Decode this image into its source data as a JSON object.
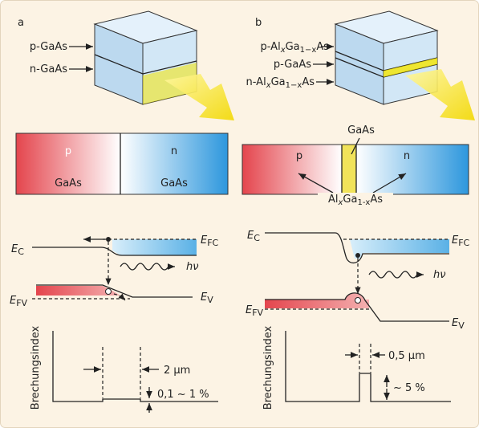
{
  "panels": [
    {
      "label": "a",
      "layers": [
        [
          "p-GaAs"
        ],
        [
          "n-GaAs"
        ]
      ],
      "bar": {
        "left": {
          "type": "p",
          "material": "GaAs"
        },
        "right": {
          "type": "n",
          "material": "GaAs"
        }
      },
      "energy": {
        "ec": [
          "E",
          "C"
        ],
        "efc": [
          "E",
          "FC"
        ],
        "efv": [
          "E",
          "FV"
        ],
        "ev": [
          "E",
          "V"
        ],
        "photon": "hν"
      },
      "index": {
        "axis": "Brechungsindex",
        "width": "2 µm",
        "step": "0,1 ~ 1 %"
      }
    },
    {
      "label": "b",
      "layers": [
        [
          "p-Al",
          "x",
          "Ga",
          "1−x",
          "As"
        ],
        [
          "p-GaAs"
        ],
        [
          "n-Al",
          "x",
          "Ga",
          "1−x",
          "As"
        ]
      ],
      "bar": {
        "left": {
          "type": "p"
        },
        "middle": "GaAs",
        "right": {
          "type": "n"
        },
        "cladding": [
          "Al",
          "x",
          "Ga",
          "1-x",
          "As"
        ]
      },
      "energy": {
        "ec": [
          "E",
          "C"
        ],
        "efc": [
          "E",
          "FC"
        ],
        "efv": [
          "E",
          "FV"
        ],
        "ev": [
          "E",
          "V"
        ],
        "photon": "hν"
      },
      "index": {
        "axis": "Brechungsindex",
        "width": "0,5 µm",
        "step": "~ 5 %"
      }
    }
  ]
}
